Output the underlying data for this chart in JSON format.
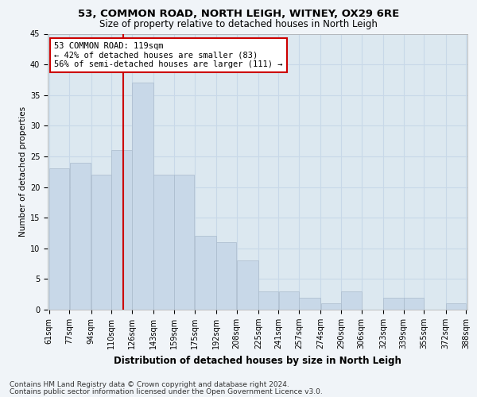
{
  "title1": "53, COMMON ROAD, NORTH LEIGH, WITNEY, OX29 6RE",
  "title2": "Size of property relative to detached houses in North Leigh",
  "xlabel": "Distribution of detached houses by size in North Leigh",
  "ylabel": "Number of detached properties",
  "annotation_line1": "53 COMMON ROAD: 119sqm",
  "annotation_line2": "← 42% of detached houses are smaller (83)",
  "annotation_line3": "56% of semi-detached houses are larger (111) →",
  "bar_left_edges": [
    61,
    77,
    94,
    110,
    126,
    143,
    159,
    175,
    192,
    208,
    225,
    241,
    257,
    274,
    290,
    306,
    323,
    339,
    355,
    372
  ],
  "bar_widths": [
    16,
    17,
    16,
    16,
    17,
    16,
    16,
    17,
    16,
    17,
    16,
    16,
    17,
    16,
    16,
    17,
    16,
    16,
    17,
    16
  ],
  "bar_heights": [
    23,
    24,
    22,
    26,
    37,
    22,
    22,
    12,
    11,
    8,
    3,
    3,
    2,
    1,
    3,
    0,
    2,
    2,
    0,
    1
  ],
  "bar_color": "#c8d8e8",
  "bar_edgecolor": "#aabbcc",
  "vline_color": "#cc0000",
  "vline_x": 119,
  "annotation_box_color": "#ffffff",
  "annotation_box_edgecolor": "#cc0000",
  "grid_color": "#c8d8e8",
  "bg_color": "#dce8f0",
  "ylim": [
    0,
    45
  ],
  "yticks": [
    0,
    5,
    10,
    15,
    20,
    25,
    30,
    35,
    40,
    45
  ],
  "xtick_labels": [
    "61sqm",
    "77sqm",
    "94sqm",
    "110sqm",
    "126sqm",
    "143sqm",
    "159sqm",
    "175sqm",
    "192sqm",
    "208sqm",
    "225sqm",
    "241sqm",
    "257sqm",
    "274sqm",
    "290sqm",
    "306sqm",
    "323sqm",
    "339sqm",
    "355sqm",
    "372sqm",
    "388sqm"
  ],
  "footer1": "Contains HM Land Registry data © Crown copyright and database right 2024.",
  "footer2": "Contains public sector information licensed under the Open Government Licence v3.0.",
  "title1_fontsize": 9.5,
  "title2_fontsize": 8.5,
  "xlabel_fontsize": 8.5,
  "ylabel_fontsize": 7.5,
  "tick_fontsize": 7,
  "annotation_fontsize": 7.5,
  "footer_fontsize": 6.5
}
